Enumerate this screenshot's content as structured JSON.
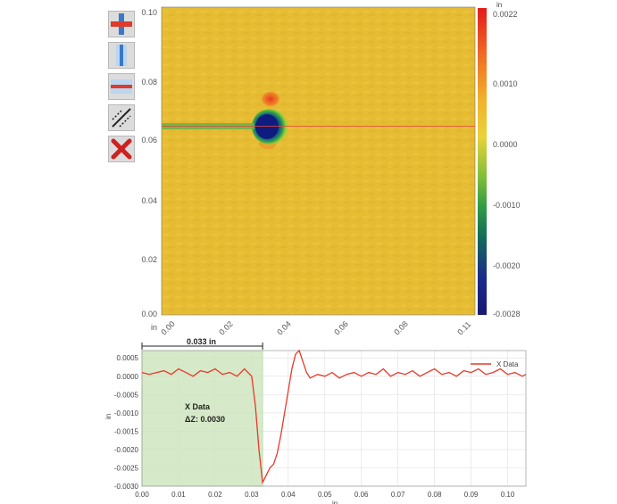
{
  "toolbar": {
    "tools": [
      {
        "name": "crosshair-tool",
        "icon": "crosshair-icon"
      },
      {
        "name": "vertical-profile-tool",
        "icon": "vertical-line-icon"
      },
      {
        "name": "horizontal-profile-tool",
        "icon": "horizontal-line-icon"
      },
      {
        "name": "arbitrary-line-tool",
        "icon": "diagonal-line-icon"
      },
      {
        "name": "clear-profiles-tool",
        "icon": "close-icon"
      }
    ]
  },
  "map": {
    "x_unit": "in",
    "x_ticks": [
      "0.00",
      "0.02",
      "0.04",
      "0.06",
      "0.08",
      "0.11"
    ],
    "y_ticks": [
      "0.10",
      "0.08",
      "0.06",
      "0.04",
      "0.02",
      "0.00"
    ],
    "colorbar_unit": "in",
    "colorbar_ticks": [
      "0.0022",
      "0.0010",
      "0.0000",
      "-0.0010",
      "-0.0020",
      "-0.0028"
    ],
    "colors": {
      "background": "#e9bf35",
      "high": "#e83a1e",
      "low": "#1c2a8a",
      "mid": "#4aa83a"
    }
  },
  "profile": {
    "measure_label": "0.033 in",
    "annotation_title": "X Data",
    "annotation_value": "ΔZ: 0.0030",
    "legend": "X Data",
    "y_unit": "in",
    "x_unit": "in"
  },
  "chart_data": {
    "type": "line",
    "title": "",
    "xlabel": "in",
    "ylabel": "in",
    "xlim": [
      0.0,
      0.105
    ],
    "ylim": [
      -0.003,
      0.0007
    ],
    "x_ticks": [
      "0.00",
      "0.01",
      "0.02",
      "0.03",
      "0.04",
      "0.05",
      "0.06",
      "0.07",
      "0.08",
      "0.09",
      "0.10"
    ],
    "y_ticks": [
      "0.0005",
      "0.0000",
      "-0.0005",
      "-0.0010",
      "-0.0015",
      "-0.0020",
      "-0.0025",
      "-0.0030"
    ],
    "legend_position": "top-right",
    "series": [
      {
        "name": "X Data",
        "color": "#e8392a",
        "x": [
          0.0,
          0.002,
          0.004,
          0.006,
          0.008,
          0.01,
          0.012,
          0.014,
          0.016,
          0.018,
          0.02,
          0.022,
          0.024,
          0.026,
          0.028,
          0.03,
          0.031,
          0.032,
          0.033,
          0.034,
          0.035,
          0.036,
          0.037,
          0.038,
          0.039,
          0.04,
          0.041,
          0.042,
          0.043,
          0.044,
          0.045,
          0.046,
          0.048,
          0.05,
          0.052,
          0.054,
          0.056,
          0.058,
          0.06,
          0.062,
          0.064,
          0.066,
          0.068,
          0.07,
          0.072,
          0.074,
          0.076,
          0.078,
          0.08,
          0.082,
          0.084,
          0.086,
          0.088,
          0.09,
          0.092,
          0.094,
          0.096,
          0.098,
          0.1,
          0.102,
          0.104,
          0.105
        ],
        "y": [
          0.0001,
          5e-05,
          0.0001,
          0.00015,
          5e-05,
          0.0002,
          0.0001,
          0.0,
          0.00015,
          0.0001,
          0.0002,
          5e-05,
          0.0001,
          0.0,
          0.0002,
          0.0,
          -0.0008,
          -0.002,
          -0.0029,
          -0.0027,
          -0.0025,
          -0.0024,
          -0.0021,
          -0.0016,
          -0.001,
          -0.0004,
          0.0002,
          0.0006,
          0.0007,
          0.0004,
          0.0001,
          -5e-05,
          5e-05,
          0.0,
          0.0001,
          -5e-05,
          5e-05,
          0.0001,
          0.0,
          0.0001,
          5e-05,
          0.0002,
          0.0,
          0.0001,
          5e-05,
          0.00015,
          0.0,
          0.0001,
          0.0002,
          5e-05,
          0.0001,
          0.0,
          0.00015,
          0.0001,
          0.0002,
          5e-05,
          0.0001,
          0.0002,
          5e-05,
          0.0001,
          0.0,
          5e-05
        ]
      }
    ],
    "highlight_range_x": [
      0.0,
      0.033
    ]
  }
}
